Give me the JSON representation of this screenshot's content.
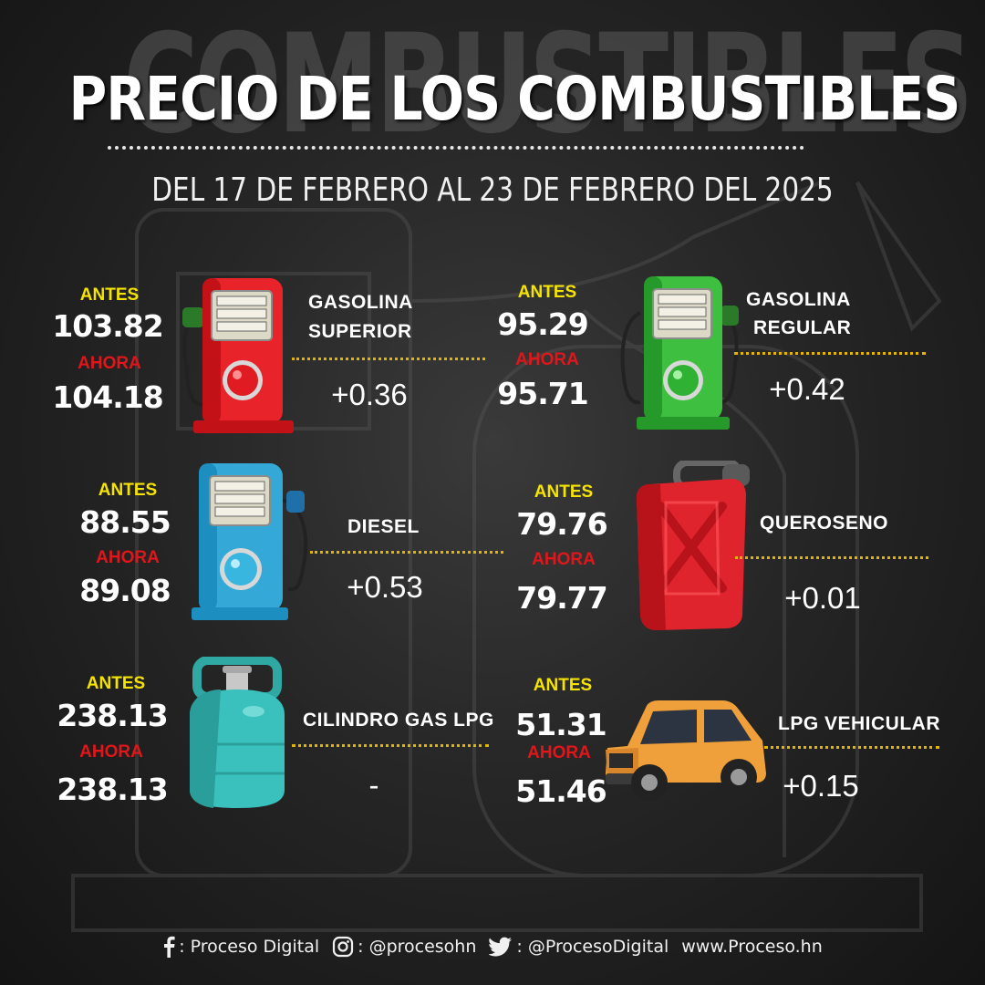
{
  "header": {
    "background_word": "COMBUSTIBLES",
    "title": "PRECIO DE LOS COMBUSTIBLES",
    "subtitle": "DEL 17 DE FEBRERO AL 23 DE FEBRERO DEL 2025"
  },
  "labels": {
    "before": "ANTES",
    "now": "AHORA"
  },
  "fuels": [
    {
      "name_line1": "GASOLINA",
      "name_line2": "SUPERIOR",
      "before": "103.82",
      "now": "104.18",
      "diff": "+0.36",
      "icon": "red-fuel-pump-icon"
    },
    {
      "name_line1": "GASOLINA",
      "name_line2": "REGULAR",
      "before": "95.29",
      "now": "95.71",
      "diff": "+0.42",
      "icon": "green-fuel-pump-icon"
    },
    {
      "name_line1": "DIESEL",
      "before": "88.55",
      "now": "89.08",
      "diff": "+0.53",
      "icon": "blue-fuel-pump-icon"
    },
    {
      "name_line1": "QUEROSENO",
      "before": "79.76",
      "now": "79.77",
      "diff": "+0.01",
      "icon": "red-jerrycan-icon"
    },
    {
      "name_line1": "CILINDRO GAS LPG",
      "before": "238.13",
      "now": "238.13",
      "diff": "-",
      "icon": "gas-cylinder-icon"
    },
    {
      "name_line1": "LPG VEHICULAR",
      "before": "51.31",
      "now": "51.46",
      "diff": "+0.15",
      "icon": "orange-suv-icon"
    }
  ],
  "footer": {
    "facebook": ": Proceso Digital",
    "instagram": ": @procesohn",
    "twitter": ": @ProcesoDigital",
    "website": "www.Proceso.hn"
  },
  "colors": {
    "before_label": "#f5e400",
    "now_label": "#e0161a",
    "divider": "#e3b400",
    "background": "#262626"
  }
}
